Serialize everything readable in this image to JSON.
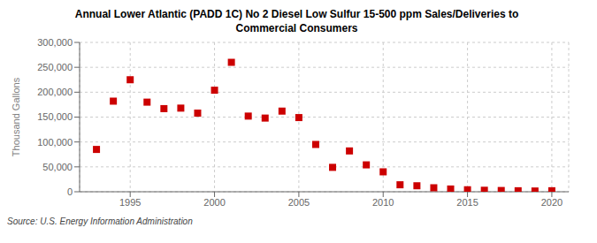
{
  "chart_data": {
    "type": "scatter",
    "title": "Annual Lower Atlantic (PADD 1C) No 2 Diesel Low Sulfur 15-500 ppm Sales/Deliveries to\nCommercial Consumers",
    "ylabel": "Thousand Gallons",
    "annotation": "Source: U.S. Energy Information Administration",
    "x": [
      1993,
      1994,
      1995,
      1996,
      1997,
      1998,
      1999,
      2000,
      2001,
      2002,
      2003,
      2004,
      2005,
      2006,
      2007,
      2008,
      2009,
      2010,
      2011,
      2012,
      2013,
      2014,
      2015,
      2016,
      2017,
      2018,
      2019,
      2020
    ],
    "values": [
      85000,
      182000,
      225000,
      180000,
      167000,
      168000,
      158000,
      204000,
      260000,
      152000,
      148000,
      162000,
      149000,
      95000,
      49000,
      82000,
      54000,
      40000,
      14000,
      12000,
      8000,
      5500,
      4000,
      3000,
      2500,
      2000,
      1500,
      2000
    ],
    "color": "#cc0000",
    "marker": "square",
    "xlim": [
      1992,
      2021
    ],
    "ylim": [
      0,
      300000
    ],
    "xticks": [
      1995,
      2000,
      2005,
      2010,
      2015,
      2020
    ],
    "yticks": [
      0,
      {
        "value": 50000,
        "label": "50,000"
      },
      {
        "value": 100000,
        "label": "100,000"
      },
      {
        "value": 150000,
        "label": "150,000"
      },
      {
        "value": 200000,
        "label": "200,000"
      },
      {
        "value": 250000,
        "label": "250,000"
      },
      {
        "value": 300000,
        "label": "300,000"
      }
    ],
    "grid": true
  }
}
